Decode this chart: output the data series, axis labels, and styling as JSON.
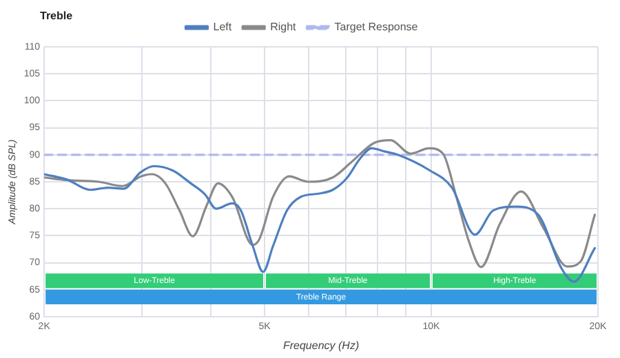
{
  "chart_data": {
    "type": "line",
    "title": "Treble",
    "xlabel": "Frequency (Hz)",
    "ylabel": "Amplitude (dB SPL)",
    "log": "x",
    "xlim": [
      2000,
      20000
    ],
    "xticks": [
      {
        "value": 2000,
        "label": "2K"
      },
      {
        "value": 3000,
        "label": null
      },
      {
        "value": 4000,
        "label": null
      },
      {
        "value": 5000,
        "label": "5K"
      },
      {
        "value": 6000,
        "label": null
      },
      {
        "value": 7000,
        "label": null
      },
      {
        "value": 8000,
        "label": null
      },
      {
        "value": 9000,
        "label": null
      },
      {
        "value": 10000,
        "label": "10K"
      },
      {
        "value": 20000,
        "label": "20K"
      }
    ],
    "ylim": [
      60,
      110
    ],
    "yticks": [
      60,
      65,
      70,
      75,
      80,
      85,
      90,
      95,
      100,
      105,
      110
    ],
    "grid": true,
    "legend": "top",
    "marker": "none",
    "series": [
      {
        "name": "Left",
        "color": "#4f7fc0",
        "x": [
          2000,
          2200,
          2420,
          2610,
          2780,
          2990,
          3160,
          3410,
          3680,
          3900,
          4090,
          4370,
          4530,
          4760,
          4970,
          5180,
          5490,
          5810,
          6260,
          6640,
          7030,
          7440,
          7800,
          8250,
          8700,
          9900,
          10900,
          11990,
          12940,
          14200,
          15600,
          17200,
          18100,
          19740
        ],
        "values": [
          86.4,
          85.4,
          83.5,
          83.9,
          83.7,
          86.8,
          87.9,
          87.1,
          84.7,
          82.7,
          80,
          81,
          79.7,
          73.1,
          68.3,
          73.1,
          79.7,
          82.2,
          82.8,
          83.5,
          85.6,
          89.3,
          91.2,
          90.6,
          90,
          87.2,
          83.9,
          75.2,
          79.7,
          80.4,
          78.9,
          68.9,
          66.5,
          72.7
        ]
      },
      {
        "name": "Right",
        "color": "#8a8a8a",
        "x": [
          2000,
          2200,
          2510,
          2770,
          2990,
          3130,
          3310,
          3510,
          3710,
          3930,
          4120,
          4370,
          4760,
          4890,
          5180,
          5540,
          5990,
          6640,
          7150,
          7890,
          8440,
          9180,
          9900,
          10500,
          11100,
          11700,
          12300,
          13300,
          14530,
          15950,
          17600,
          18600,
          19740
        ],
        "values": [
          85.8,
          85.3,
          85,
          84.2,
          86,
          86.4,
          84.7,
          79.7,
          74.9,
          80.6,
          84.7,
          82.2,
          73.3,
          74.3,
          82.2,
          86,
          85,
          85.8,
          88.5,
          92.2,
          92.7,
          90.2,
          91.2,
          90.2,
          82.2,
          73.9,
          69.2,
          77.2,
          83.2,
          76.4,
          69.3,
          70.2,
          78.9
        ]
      },
      {
        "name": "Target Response",
        "color": "#b0b8f0",
        "line_style": "dashed",
        "x": [
          2000,
          20000
        ],
        "values": [
          90,
          90
        ]
      }
    ],
    "bands": [
      {
        "axis": "x",
        "from": 2000,
        "to": 5000,
        "label": "Low-Treble",
        "color": "#33cc77"
      },
      {
        "axis": "x",
        "from": 5000,
        "to": 10000,
        "label": "Mid-Treble",
        "color": "#33cc77"
      },
      {
        "axis": "x",
        "from": 10000,
        "to": 20000,
        "label": "High-Treble",
        "color": "#33cc77"
      },
      {
        "axis": "x",
        "from": 2000,
        "to": 20000,
        "label": "Treble Range",
        "color": "#3399e0"
      }
    ]
  }
}
